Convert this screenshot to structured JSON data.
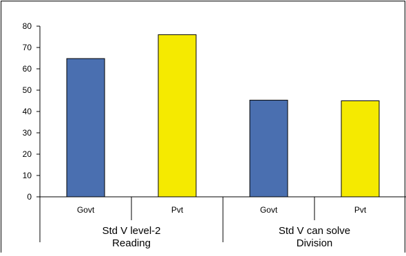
{
  "chart_data": {
    "type": "bar",
    "categories": [
      "Govt",
      "Pvt",
      "Govt",
      "Pvt"
    ],
    "groups": [
      {
        "label_lines": [
          "Std V level-2",
          "Reading"
        ],
        "categories": [
          "Govt",
          "Pvt"
        ]
      },
      {
        "label_lines": [
          "Std V can solve",
          "Division"
        ],
        "categories": [
          "Govt",
          "Pvt"
        ]
      }
    ],
    "values": [
      64.8,
      76.0,
      45.3,
      45.0
    ],
    "bar_colors": [
      "#4a6fb0",
      "#f5ea00",
      "#4a6fb0",
      "#f5ea00"
    ],
    "ylim": [
      0,
      80
    ],
    "yticks": [
      0,
      10,
      20,
      30,
      40,
      50,
      60,
      70,
      80
    ],
    "grid": false,
    "legend": "none"
  }
}
